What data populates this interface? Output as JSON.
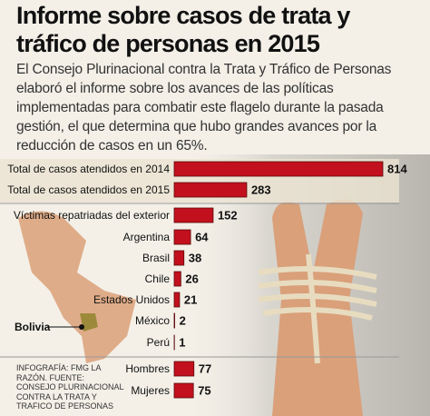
{
  "chart_data": {
    "type": "bar",
    "title": "Informe sobre casos de trata y tráfico de personas en 2015",
    "subtitle": "El Consejo Plurinacional contra la Trata y Tráfico de Personas elaboró el informe sobre los avances de las políticas implementadas para combatir este flagelo durante la pasada gestión, el que determina que hubo grandes avances por la reducción de casos en un 65%.",
    "source": "INFOGRAFÍA: FMG LA RAZÓN. FUENTE: CONSEJO PLURINACIONAL CONTRA LA TRATA Y TRAFICO DE PERSONAS",
    "map_label": "Bolivia",
    "categories": [
      "Total de casos atendidos en 2014",
      "Total de casos atendidos en 2015",
      "Víctimas repatriadas del exterior",
      "Argentina",
      "Brasil",
      "Chile",
      "Estados Unidos",
      "México",
      "Perú",
      "Hombres",
      "Mujeres"
    ],
    "values": [
      814,
      283,
      152,
      64,
      38,
      26,
      21,
      2,
      1,
      77,
      75
    ],
    "color": "#c3101e"
  }
}
